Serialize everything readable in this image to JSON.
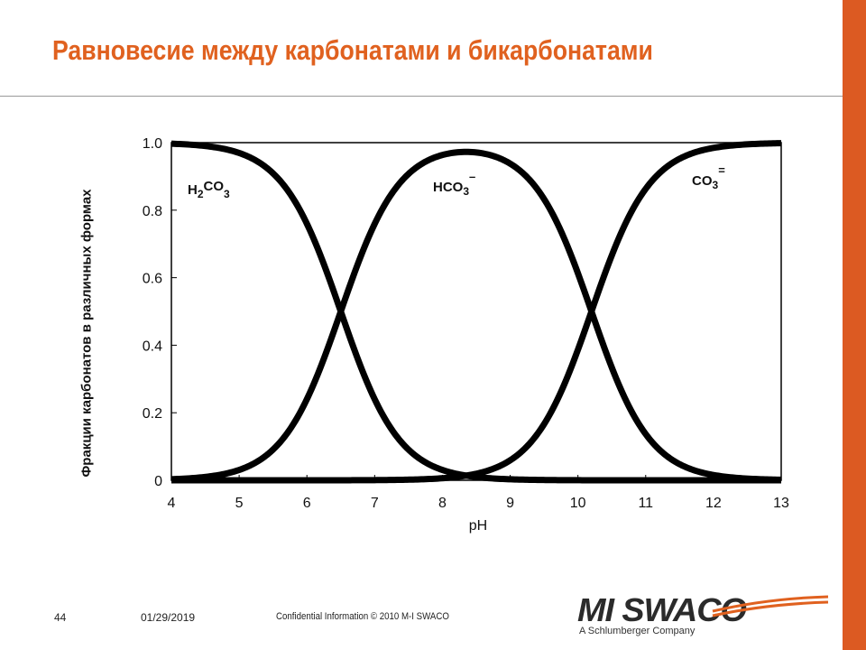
{
  "slide": {
    "title": "Равновесие между карбонатами и бикарбонатами",
    "number": "44",
    "date": "01/29/2019",
    "confidential": "Confidential Information  © 2010 M-I SWACO"
  },
  "logo": {
    "text": "MI SWACO",
    "subtitle": "A Schlumberger Company"
  },
  "colors": {
    "title": "#e0611f",
    "side_bar": "#dc5a22",
    "curve": "#000000",
    "logo_swoosh": "#e0611f"
  },
  "chart_data": {
    "type": "line",
    "title": "",
    "xlabel": "pH",
    "ylabel": "Фракции карбонатов в различных формах",
    "xlim": [
      4,
      13
    ],
    "ylim": [
      0,
      1.0
    ],
    "x_ticks": [
      "4",
      "5",
      "6",
      "7",
      "8",
      "9",
      "10",
      "11",
      "12",
      "13"
    ],
    "y_ticks": [
      "0",
      "0.2",
      "0.4",
      "0.6",
      "0.8",
      "1.0"
    ],
    "grid": false,
    "legend": "none",
    "pKa1": 6.5,
    "pKa2": 10.2,
    "x": [
      4,
      4.5,
      5,
      5.5,
      6,
      6.5,
      7,
      7.5,
      8,
      8.5,
      9,
      9.5,
      10,
      10.5,
      11,
      11.5,
      12,
      12.5,
      13
    ],
    "series": [
      {
        "name": "H2CO3",
        "values": [
          0.997,
          0.99,
          0.97,
          0.91,
          0.76,
          0.5,
          0.24,
          0.09,
          0.03,
          0.01,
          0.0,
          0.0,
          0.0,
          0.0,
          0.0,
          0.0,
          0.0,
          0.0,
          0.0
        ]
      },
      {
        "name": "HCO3−",
        "values": [
          0.003,
          0.01,
          0.03,
          0.09,
          0.24,
          0.5,
          0.76,
          0.91,
          0.97,
          0.98,
          0.94,
          0.83,
          0.61,
          0.33,
          0.14,
          0.05,
          0.02,
          0.0,
          0.0
        ]
      },
      {
        "name": "CO3=",
        "values": [
          0.0,
          0.0,
          0.0,
          0.0,
          0.0,
          0.0,
          0.0,
          0.0,
          0.0,
          0.01,
          0.06,
          0.17,
          0.39,
          0.67,
          0.86,
          0.95,
          0.98,
          0.99,
          1.0
        ]
      }
    ],
    "series_labels": [
      {
        "main": "H",
        "sub1": "2",
        "mid": "CO",
        "sub2": "3",
        "sup": ""
      },
      {
        "main": "HCO",
        "sub1": "3",
        "mid": "",
        "sub2": "",
        "sup": "–"
      },
      {
        "main": "CO",
        "sub1": "3",
        "mid": "",
        "sub2": "",
        "sup": "="
      }
    ]
  }
}
